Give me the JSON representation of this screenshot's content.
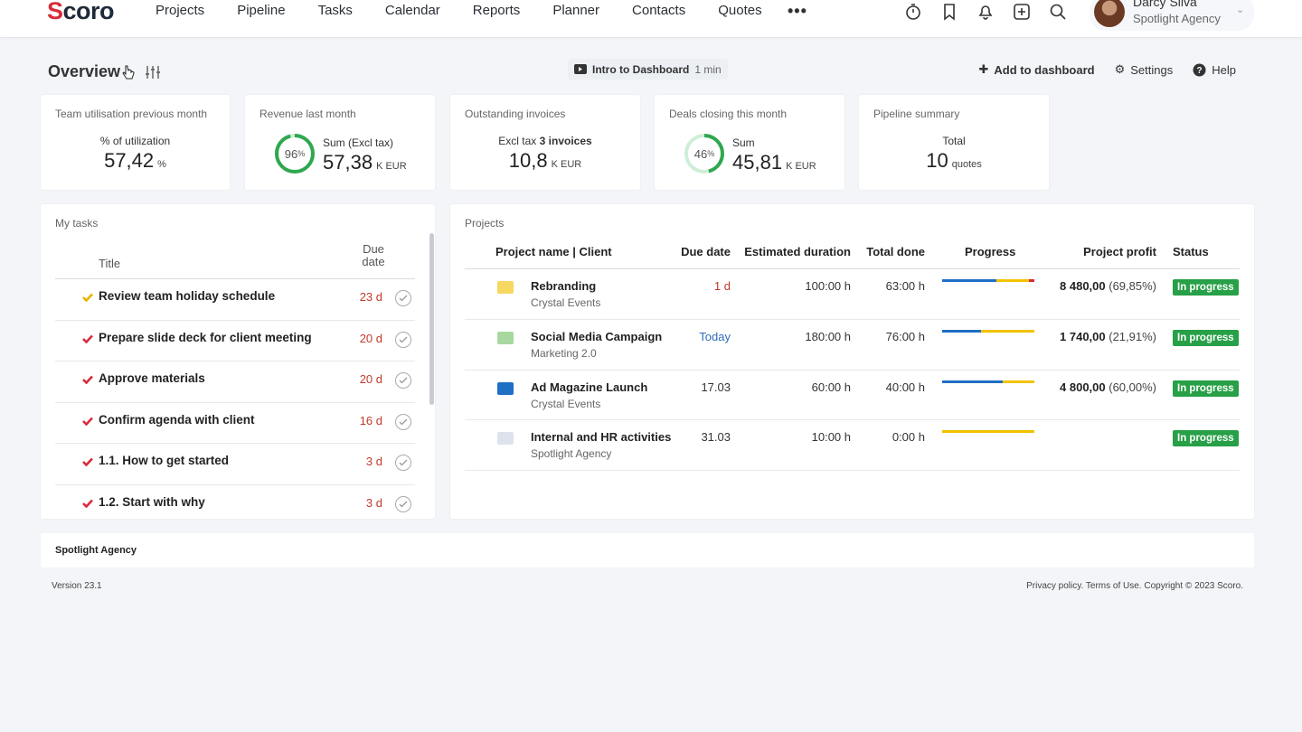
{
  "app": {
    "logo_text": "Scoro",
    "nav": [
      "Projects",
      "Pipeline",
      "Tasks",
      "Calendar",
      "Reports",
      "Planner",
      "Contacts",
      "Quotes"
    ],
    "more": "•••",
    "icons": [
      "timer-icon",
      "bookmark-icon",
      "bell-icon",
      "add-icon",
      "search-icon"
    ],
    "user": {
      "name": "Darcy Silva",
      "company": "Spotlight Agency"
    }
  },
  "header": {
    "title": "Overview",
    "intro": {
      "label": "Intro to Dashboard",
      "duration": "1 min"
    },
    "actions": {
      "add": "Add to dashboard",
      "settings": "Settings",
      "help": "Help"
    }
  },
  "kpis": {
    "utilisation": {
      "title": "Team utilisation previous month",
      "sub": "% of utilization",
      "value": "57,42",
      "unit": "%"
    },
    "revenue": {
      "title": "Revenue last month",
      "percent": 96,
      "percent_label": "96",
      "sub": "Sum (Excl tax)",
      "value": "57,38",
      "unit": "K  EUR"
    },
    "invoices": {
      "title": "Outstanding invoices",
      "sub_pre": "Excl tax",
      "sub_bold": "3 invoices",
      "value": "10,8",
      "unit": "K  EUR"
    },
    "deals": {
      "title": "Deals closing this month",
      "percent": 46,
      "percent_label": "46",
      "sub": "Sum",
      "value": "45,81",
      "unit": "K  EUR"
    },
    "pipeline": {
      "title": "Pipeline summary",
      "sub": "Total",
      "value": "10",
      "unit": "quotes"
    }
  },
  "tasks": {
    "title": "My tasks",
    "col_title": "Title",
    "col_due": "Due date",
    "items": [
      {
        "title": "Review team holiday schedule",
        "due": "23 d",
        "flag_color": "#e5b400"
      },
      {
        "title": "Prepare slide deck for client meeting",
        "due": "20 d",
        "flag_color": "#d62c3a"
      },
      {
        "title": "Approve materials",
        "due": "20 d",
        "flag_color": "#d62c3a"
      },
      {
        "title": "Confirm agenda with client",
        "due": "16 d",
        "flag_color": "#d62c3a"
      },
      {
        "title": "1.1. How to get started",
        "due": "3 d",
        "flag_color": "#d62c3a"
      },
      {
        "title": "1.2. Start with why",
        "due": "3 d",
        "flag_color": "#d62c3a"
      }
    ]
  },
  "projects": {
    "title": "Projects",
    "columns": {
      "name": "Project name | Client",
      "due": "Due date",
      "duration": "Estimated duration",
      "done": "Total done",
      "progress": "Progress",
      "profit": "Project profit",
      "status": "Status"
    },
    "rows": [
      {
        "name": "Rebranding",
        "client": "Crystal Events",
        "due": "1 d",
        "due_color": "#c0392b",
        "duration": "100:00 h",
        "done": "63:00 h",
        "progress": {
          "blue": 0.59,
          "yellow": 0.35,
          "red": 0.06
        },
        "profit": "8 480,00",
        "profit_pct": "(69,85%)",
        "status": "In progress",
        "icon_color": "#f6d860"
      },
      {
        "name": "Social Media Campaign",
        "client": "Marketing 2.0",
        "due": "Today",
        "due_color": "#2f6eb5",
        "duration": "180:00 h",
        "done": "76:00 h",
        "progress": {
          "blue": 0.42,
          "yellow": 0.58,
          "red": 0
        },
        "profit": "1 740,00",
        "profit_pct": "(21,91%)",
        "status": "In progress",
        "icon_color": "#a8d8a0"
      },
      {
        "name": "Ad Magazine Launch",
        "client": "Crystal Events",
        "due": "17.03",
        "due_color": "#333333",
        "duration": "60:00 h",
        "done": "40:00 h",
        "progress": {
          "blue": 0.66,
          "yellow": 0.34,
          "red": 0
        },
        "profit": "4 800,00",
        "profit_pct": "(60,00%)",
        "status": "In progress",
        "icon_color": "#1f6fc5"
      },
      {
        "name": "Internal and HR activities",
        "client": "Spotlight Agency",
        "due": "31.03",
        "due_color": "#333333",
        "duration": "10:00 h",
        "done": "0:00 h",
        "progress": {
          "blue": 0,
          "yellow": 1,
          "red": 0
        },
        "profit": "",
        "profit_pct": "",
        "status": "In progress",
        "icon_color": "#dde3ec"
      }
    ]
  },
  "footer": {
    "company": "Spotlight Agency",
    "version": "Version 23.1",
    "legal": "Privacy policy. Terms of Use. Copyright © 2023 Scoro."
  },
  "colors": {
    "accent_red": "#d62c3a",
    "status_green": "#27a047",
    "ring_green": "#2fa84f",
    "bar_blue": "#1f6fc5",
    "bar_yellow": "#f2c200",
    "bar_red": "#d62c3a"
  }
}
